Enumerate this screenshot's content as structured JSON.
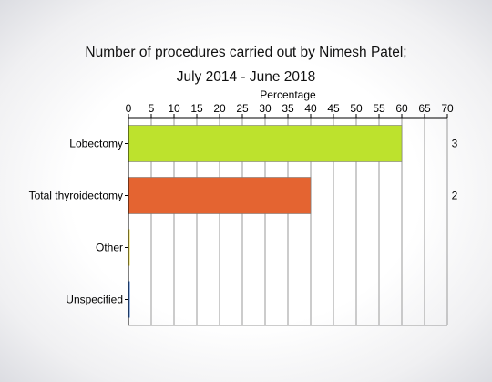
{
  "chart_data": {
    "type": "bar",
    "orientation": "horizontal",
    "title": "Number of procedures carried out by Nimesh Patel;",
    "subtitle": "July 2014 - June 2018",
    "xlabel": "Percentage",
    "xaxis_position": "top",
    "xlim": [
      0,
      70
    ],
    "xticks": [
      "0",
      "5",
      "10",
      "15",
      "20",
      "25",
      "30",
      "35",
      "40",
      "45",
      "50",
      "55",
      "60",
      "65",
      "70"
    ],
    "grid": true,
    "categories": [
      "Lobectomy",
      "Total thyroidectomy",
      "Other",
      "Unspecified"
    ],
    "values": [
      60,
      40,
      0,
      0
    ],
    "counts": [
      "3",
      "2",
      "",
      ""
    ],
    "colors": [
      "#bde22d",
      "#e46431",
      "#e8d848",
      "#3a6fc4"
    ]
  }
}
